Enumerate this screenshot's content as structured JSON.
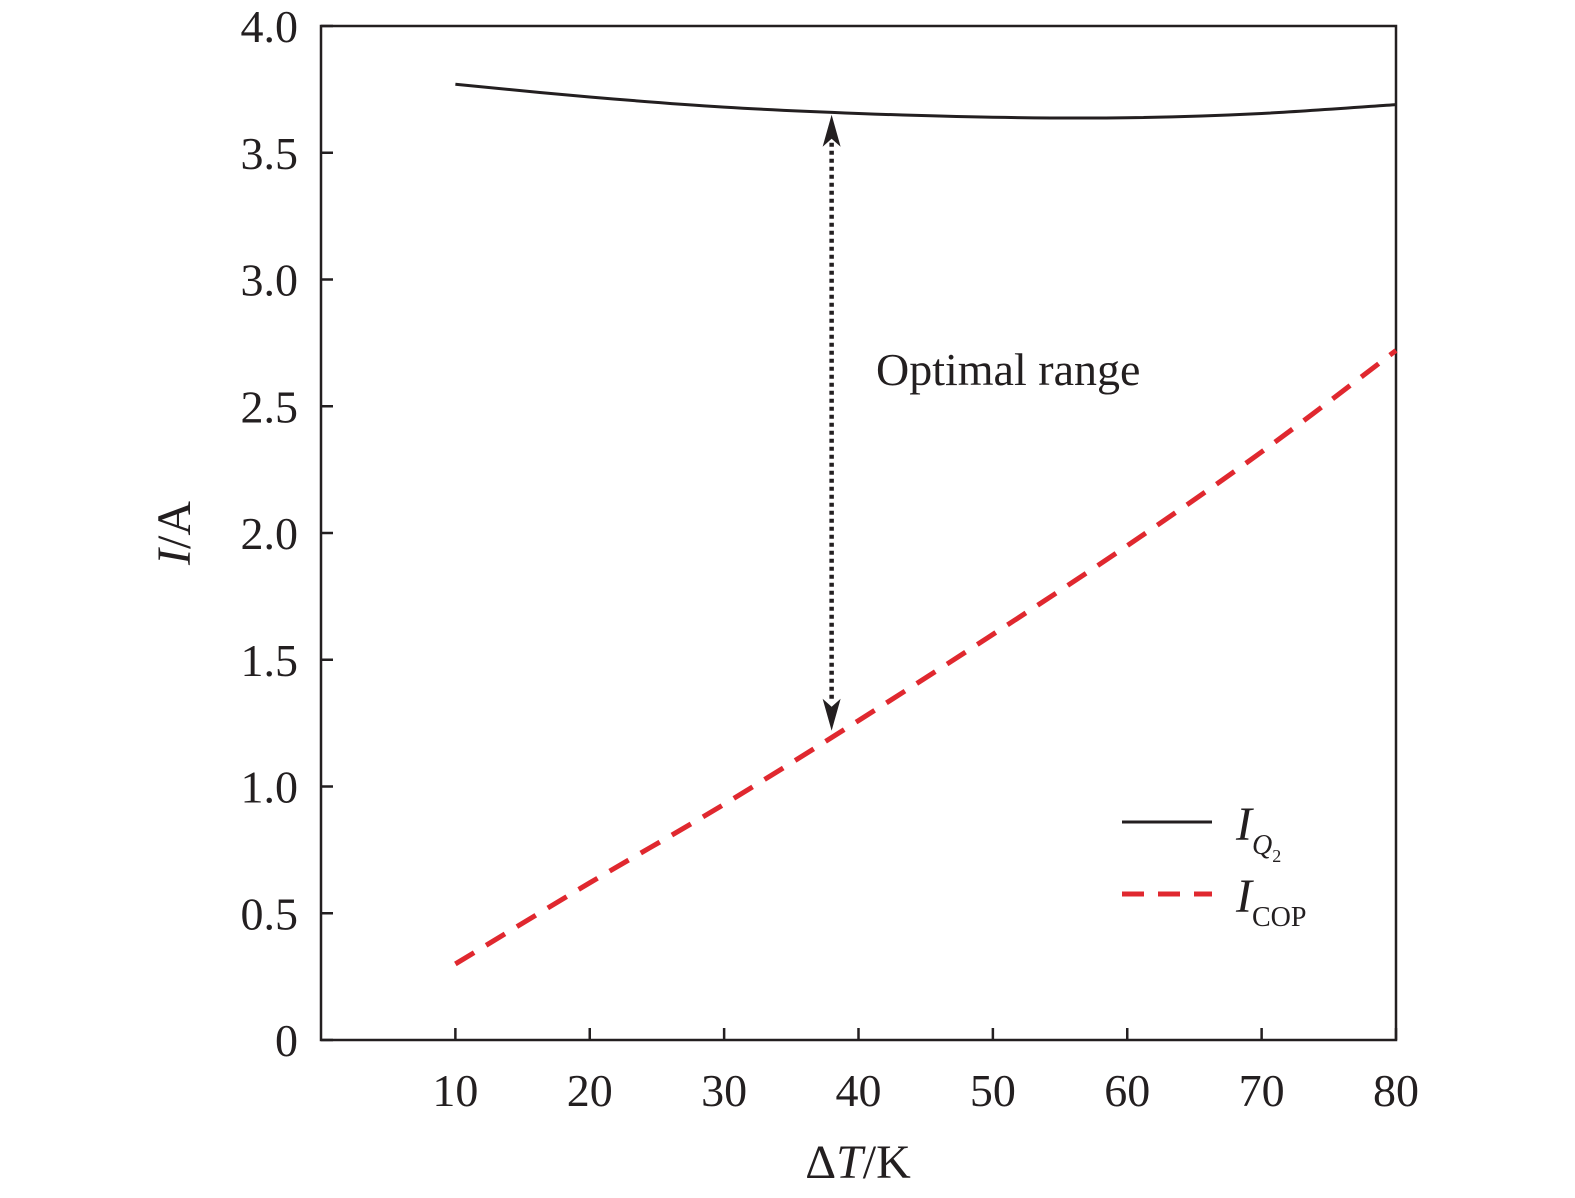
{
  "chart_data": {
    "type": "line",
    "title": "",
    "xlabel": {
      "delta": "Δ",
      "var": "T",
      "unit": "/K"
    },
    "ylabel": {
      "var": "I",
      "unit": "/A"
    },
    "xlim": [
      0,
      80
    ],
    "ylim": [
      0,
      4.0
    ],
    "xticks": [
      10,
      20,
      30,
      40,
      50,
      60,
      70,
      80
    ],
    "xtick_labels": [
      "10",
      "20",
      "30",
      "40",
      "50",
      "60",
      "70",
      "80"
    ],
    "yticks": [
      0,
      0.5,
      1.0,
      1.5,
      2.0,
      2.5,
      3.0,
      3.5,
      4.0
    ],
    "ytick_labels": [
      "0",
      "0.5",
      "1.0",
      "1.5",
      "2.0",
      "2.5",
      "3.0",
      "3.5",
      "4.0"
    ],
    "grid": false,
    "legend_position": "bottom-right",
    "series": [
      {
        "name": "I_Q2",
        "legend": {
          "main": "I",
          "sub": "Q",
          "subsub": "2"
        },
        "style": "solid",
        "color": "#231f20",
        "x": [
          10,
          20,
          30,
          40,
          50,
          60,
          70,
          80
        ],
        "y": [
          3.77,
          3.72,
          3.68,
          3.655,
          3.64,
          3.638,
          3.655,
          3.69
        ]
      },
      {
        "name": "I_COP",
        "legend": {
          "main": "I",
          "sub": "COP"
        },
        "style": "dashed",
        "color": "#e0282f",
        "x": [
          10,
          20,
          30,
          40,
          50,
          60,
          70,
          80
        ],
        "y": [
          0.3,
          0.62,
          0.93,
          1.26,
          1.6,
          1.95,
          2.32,
          2.72
        ]
      }
    ],
    "annotations": [
      {
        "text": "Optimal range",
        "type": "double-arrow",
        "x": 38,
        "y_from": 1.22,
        "y_to": 3.65
      }
    ]
  }
}
